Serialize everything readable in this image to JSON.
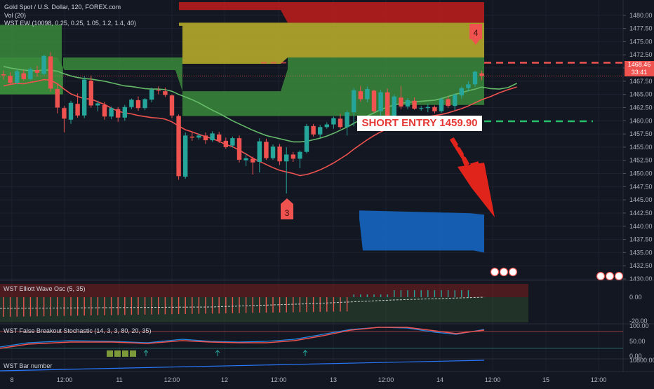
{
  "header": {
    "title": "Gold Spot / U.S. Dollar, 120, FOREX.com",
    "vol_label": "Vol (20)",
    "ew_label": "WST EW (10098, 0.25, 0.25, 1.05, 1.2, 1.4, 40)"
  },
  "price_tag": {
    "price": "1468.46",
    "countdown": "33:41"
  },
  "wave_labels": {
    "wave3": "3",
    "wave4": "4"
  },
  "entry": {
    "label": "SHORT ENTRY 1459.90",
    "price": 1459.9
  },
  "stop_price": 1471.0,
  "colors": {
    "background": "#131722",
    "up": "#26a69a",
    "down": "#ef5350",
    "fast_ma": "#ef5350",
    "slow_ma": "#66bb6a",
    "zone_red": "#b71c1c",
    "zone_yellow": "#b5a92a",
    "zone_green": "#3b8a3b",
    "target_box": "#1565c0"
  },
  "chart_data": [
    {
      "type": "candlestick",
      "title": "Gold Spot / U.S. Dollar, 120, FOREX.com",
      "ylim": [
        1430,
        1482.5
      ],
      "y_ticks": [
        "1480.00",
        "1477.50",
        "1475.00",
        "1472.50",
        "1470.00",
        "1467.50",
        "1465.00",
        "1462.50",
        "1460.00",
        "1457.50",
        "1455.00",
        "1452.50",
        "1450.00",
        "1447.50",
        "1445.00",
        "1442.50",
        "1440.00",
        "1437.50",
        "1435.00",
        "1432.50",
        "1430.00"
      ],
      "x_ticks": [
        "8",
        "12:00",
        "11",
        "12:00",
        "12",
        "12:00",
        "13",
        "12:00",
        "14",
        "12:00",
        "15",
        "12:00"
      ],
      "candles": [
        {
          "o": 1468.8,
          "h": 1469.5,
          "l": 1467.8,
          "c": 1468.6
        },
        {
          "o": 1468.5,
          "h": 1469.2,
          "l": 1466.8,
          "c": 1467.2
        },
        {
          "o": 1467.2,
          "h": 1469.8,
          "l": 1466.9,
          "c": 1469.4
        },
        {
          "o": 1469.0,
          "h": 1469.6,
          "l": 1467.6,
          "c": 1467.9
        },
        {
          "o": 1467.9,
          "h": 1470.1,
          "l": 1467.6,
          "c": 1469.8
        },
        {
          "o": 1469.6,
          "h": 1470.4,
          "l": 1468.4,
          "c": 1469.1
        },
        {
          "o": 1468.9,
          "h": 1472.5,
          "l": 1468.6,
          "c": 1472.3
        },
        {
          "o": 1472.2,
          "h": 1473.0,
          "l": 1465.5,
          "c": 1466.1
        },
        {
          "o": 1466.0,
          "h": 1467.0,
          "l": 1461.4,
          "c": 1462.5
        },
        {
          "o": 1462.4,
          "h": 1462.8,
          "l": 1457.8,
          "c": 1460.4
        },
        {
          "o": 1460.2,
          "h": 1463.8,
          "l": 1459.4,
          "c": 1463.4
        },
        {
          "o": 1463.2,
          "h": 1465.2,
          "l": 1460.6,
          "c": 1461.0
        },
        {
          "o": 1461.0,
          "h": 1468.4,
          "l": 1460.5,
          "c": 1467.8
        },
        {
          "o": 1467.6,
          "h": 1468.6,
          "l": 1462.5,
          "c": 1462.9
        },
        {
          "o": 1462.9,
          "h": 1463.8,
          "l": 1461.8,
          "c": 1463.3
        },
        {
          "o": 1463.0,
          "h": 1463.6,
          "l": 1460.2,
          "c": 1460.8
        },
        {
          "o": 1460.8,
          "h": 1462.7,
          "l": 1460.3,
          "c": 1462.4
        },
        {
          "o": 1462.2,
          "h": 1462.6,
          "l": 1459.8,
          "c": 1460.6
        },
        {
          "o": 1460.6,
          "h": 1463.0,
          "l": 1460.0,
          "c": 1462.6
        },
        {
          "o": 1462.6,
          "h": 1464.2,
          "l": 1462.2,
          "c": 1464.0
        },
        {
          "o": 1463.9,
          "h": 1464.6,
          "l": 1461.9,
          "c": 1462.4
        },
        {
          "o": 1462.4,
          "h": 1464.3,
          "l": 1462.0,
          "c": 1464.1
        },
        {
          "o": 1464.0,
          "h": 1466.3,
          "l": 1463.5,
          "c": 1465.9
        },
        {
          "o": 1465.8,
          "h": 1466.5,
          "l": 1465.0,
          "c": 1465.7
        },
        {
          "o": 1465.6,
          "h": 1466.3,
          "l": 1464.5,
          "c": 1464.9
        },
        {
          "o": 1464.8,
          "h": 1465.0,
          "l": 1460.5,
          "c": 1461.0
        },
        {
          "o": 1460.9,
          "h": 1461.2,
          "l": 1448.8,
          "c": 1449.5
        },
        {
          "o": 1449.4,
          "h": 1457.8,
          "l": 1449.0,
          "c": 1457.2
        },
        {
          "o": 1457.0,
          "h": 1457.9,
          "l": 1456.2,
          "c": 1456.8
        },
        {
          "o": 1456.8,
          "h": 1457.6,
          "l": 1456.4,
          "c": 1457.2
        },
        {
          "o": 1457.2,
          "h": 1457.8,
          "l": 1455.6,
          "c": 1456.3
        },
        {
          "o": 1456.3,
          "h": 1458.0,
          "l": 1456.0,
          "c": 1457.6
        },
        {
          "o": 1457.4,
          "h": 1457.9,
          "l": 1455.8,
          "c": 1456.2
        },
        {
          "o": 1456.2,
          "h": 1456.8,
          "l": 1454.7,
          "c": 1455.0
        },
        {
          "o": 1455.3,
          "h": 1457.0,
          "l": 1454.9,
          "c": 1456.7
        },
        {
          "o": 1456.7,
          "h": 1457.2,
          "l": 1452.1,
          "c": 1452.6
        },
        {
          "o": 1452.5,
          "h": 1453.7,
          "l": 1451.4,
          "c": 1452.9
        },
        {
          "o": 1452.8,
          "h": 1453.2,
          "l": 1449.8,
          "c": 1452.1
        },
        {
          "o": 1452.2,
          "h": 1456.7,
          "l": 1450.2,
          "c": 1456.1
        },
        {
          "o": 1456.0,
          "h": 1456.6,
          "l": 1452.6,
          "c": 1452.9
        },
        {
          "o": 1452.9,
          "h": 1455.5,
          "l": 1452.6,
          "c": 1455.1
        },
        {
          "o": 1455.1,
          "h": 1455.6,
          "l": 1451.6,
          "c": 1452.3
        },
        {
          "o": 1452.3,
          "h": 1455.0,
          "l": 1446.2,
          "c": 1453.6
        },
        {
          "o": 1453.6,
          "h": 1454.1,
          "l": 1452.2,
          "c": 1452.8
        },
        {
          "o": 1452.8,
          "h": 1454.4,
          "l": 1451.0,
          "c": 1454.1
        },
        {
          "o": 1454.1,
          "h": 1459.4,
          "l": 1453.8,
          "c": 1459.0
        },
        {
          "o": 1459.0,
          "h": 1459.4,
          "l": 1457.0,
          "c": 1457.4
        },
        {
          "o": 1457.4,
          "h": 1459.2,
          "l": 1456.8,
          "c": 1458.8
        },
        {
          "o": 1458.8,
          "h": 1459.7,
          "l": 1458.5,
          "c": 1459.3
        },
        {
          "o": 1459.3,
          "h": 1460.8,
          "l": 1458.5,
          "c": 1460.5
        },
        {
          "o": 1460.4,
          "h": 1461.3,
          "l": 1458.5,
          "c": 1458.8
        },
        {
          "o": 1458.8,
          "h": 1462.0,
          "l": 1457.2,
          "c": 1461.6
        },
        {
          "o": 1461.6,
          "h": 1466.2,
          "l": 1459.0,
          "c": 1465.8
        },
        {
          "o": 1465.6,
          "h": 1466.6,
          "l": 1463.6,
          "c": 1464.1
        },
        {
          "o": 1464.1,
          "h": 1466.5,
          "l": 1463.5,
          "c": 1466.0
        },
        {
          "o": 1465.7,
          "h": 1465.9,
          "l": 1461.5,
          "c": 1461.8
        },
        {
          "o": 1461.8,
          "h": 1465.9,
          "l": 1460.6,
          "c": 1465.4
        },
        {
          "o": 1465.4,
          "h": 1466.1,
          "l": 1460.3,
          "c": 1460.6
        },
        {
          "o": 1460.8,
          "h": 1465.0,
          "l": 1460.3,
          "c": 1464.6
        },
        {
          "o": 1464.4,
          "h": 1466.6,
          "l": 1462.2,
          "c": 1462.7
        },
        {
          "o": 1462.7,
          "h": 1464.3,
          "l": 1462.2,
          "c": 1463.9
        },
        {
          "o": 1463.8,
          "h": 1464.4,
          "l": 1462.1,
          "c": 1462.3
        },
        {
          "o": 1462.3,
          "h": 1462.8,
          "l": 1461.9,
          "c": 1462.4
        },
        {
          "o": 1462.4,
          "h": 1463.2,
          "l": 1461.6,
          "c": 1462.6
        },
        {
          "o": 1462.6,
          "h": 1462.9,
          "l": 1461.4,
          "c": 1461.8
        },
        {
          "o": 1461.8,
          "h": 1464.4,
          "l": 1461.5,
          "c": 1464.1
        },
        {
          "o": 1464.1,
          "h": 1464.7,
          "l": 1462.4,
          "c": 1462.8
        },
        {
          "o": 1462.8,
          "h": 1465.2,
          "l": 1462.0,
          "c": 1464.9
        },
        {
          "o": 1464.8,
          "h": 1466.5,
          "l": 1464.2,
          "c": 1466.2
        },
        {
          "o": 1466.2,
          "h": 1467.5,
          "l": 1465.5,
          "c": 1466.9
        },
        {
          "o": 1466.9,
          "h": 1469.5,
          "l": 1466.4,
          "c": 1469.3
        },
        {
          "o": 1469.0,
          "h": 1469.5,
          "l": 1467.7,
          "c": 1468.5
        }
      ],
      "ma_fast": [
        1466.6,
        1466.9,
        1467.1,
        1467.0,
        1467.3,
        1467.5,
        1467.8,
        1467.7,
        1467.0,
        1466.0,
        1465.1,
        1464.6,
        1464.2,
        1464.1,
        1463.6,
        1463.1,
        1462.4,
        1461.8,
        1461.5,
        1461.3,
        1461.0,
        1460.8,
        1460.6,
        1460.5,
        1460.3,
        1459.8,
        1459.0,
        1458.3,
        1457.9,
        1457.4,
        1457.0,
        1456.6,
        1456.1,
        1455.5,
        1455.1,
        1454.4,
        1453.7,
        1452.9,
        1452.3,
        1451.7,
        1451.1,
        1450.6,
        1450.3,
        1450.0,
        1449.6,
        1449.8,
        1450.2,
        1450.7,
        1451.3,
        1452.0,
        1452.8,
        1453.6,
        1454.6,
        1455.5,
        1456.4,
        1457.2,
        1457.9,
        1458.5,
        1458.9,
        1459.3,
        1459.7,
        1460.1,
        1460.4,
        1460.8,
        1461.0,
        1461.2,
        1461.5,
        1461.9,
        1462.3,
        1462.8,
        1463.4,
        1464.0
      ],
      "ma_slow": [
        1470.3,
        1470.0,
        1469.8,
        1469.6,
        1469.5,
        1469.5,
        1469.6,
        1469.6,
        1469.4,
        1468.9,
        1468.5,
        1468.2,
        1468.0,
        1467.9,
        1467.7,
        1467.5,
        1467.2,
        1466.9,
        1466.6,
        1466.5,
        1466.3,
        1466.1,
        1466.0,
        1466.0,
        1465.9,
        1465.6,
        1465.0,
        1464.5,
        1464.0,
        1463.4,
        1462.7,
        1462.0,
        1461.4,
        1460.7,
        1460.0,
        1459.4,
        1458.8,
        1458.2,
        1457.7,
        1457.2,
        1456.9,
        1456.6,
        1456.3,
        1456.0,
        1456.0,
        1456.1,
        1456.4,
        1456.7,
        1457.1,
        1457.6,
        1458.2,
        1458.8,
        1459.5,
        1460.2,
        1460.9,
        1461.5,
        1462.1,
        1462.6,
        1463.0,
        1463.3,
        1463.5,
        1463.6,
        1463.7,
        1463.8,
        1463.9,
        1464.2,
        1464.6,
        1465.0,
        1465.3,
        1465.7,
        1466.0,
        1466.4
      ],
      "projection_fast": [
        1464.0,
        1464.6,
        1465.3,
        1465.9,
        1466.4
      ],
      "projection_slow": [
        1466.4,
        1466.1,
        1466.0,
        1466.3,
        1467.1
      ],
      "fib_zones": [
        {
          "name": "red",
          "top": 1482.5,
          "bottom": 1478.6
        },
        {
          "name": "yellow",
          "top": 1478.6,
          "bottom": 1472.0
        },
        {
          "name": "green",
          "top": 1472.0,
          "bottom": 1463.0
        }
      ],
      "target_zone": {
        "top": 1443.0,
        "bottom": 1435.0
      },
      "grid": true
    },
    {
      "type": "bar",
      "title": "WST Elliott Wave Osc (5, 35)",
      "y_ticks": [
        "0.00",
        "-20.00"
      ],
      "grid": true
    },
    {
      "type": "line",
      "title": "WST False Breakout Stochastic (14, 3, 3, 80, 20, 35)",
      "y_ticks": [
        "100.00",
        "50.00",
        "0.00"
      ],
      "ylim": [
        0,
        100
      ],
      "grid": true
    },
    {
      "type": "line",
      "title": "WST Bar number",
      "y_ticks": [
        "10800.00"
      ],
      "grid": true
    }
  ]
}
